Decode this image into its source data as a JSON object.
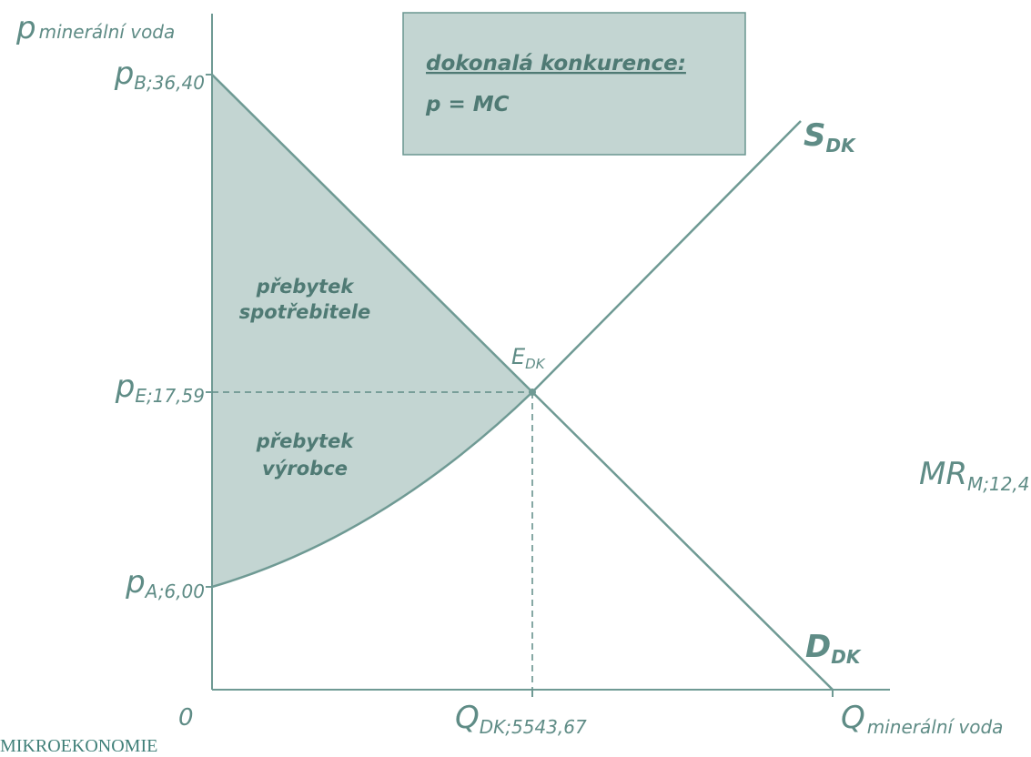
{
  "y_axis": {
    "main": "p",
    "sub": "minerální voda"
  },
  "x_axis": {
    "main": "Q",
    "sub": "minerální voda"
  },
  "origin": "0",
  "prices": [
    {
      "main": "p",
      "sub": "B;36,40"
    },
    {
      "main": "p",
      "sub": "E;17,59"
    },
    {
      "main": "p",
      "sub": "A;6,00"
    }
  ],
  "quantity": {
    "main": "Q",
    "sub": "DK;5543,67"
  },
  "supply": {
    "main": "S",
    "sub": "DK"
  },
  "demand": {
    "main": "D",
    "sub": "DK"
  },
  "equilibrium": {
    "main": "E",
    "sub": "DK"
  },
  "mr": {
    "main": "MR",
    "sub": "M;12,4"
  },
  "consumer_surplus": [
    "přebytek",
    "spotřebitele"
  ],
  "producer_surplus": [
    "přebytek",
    "výrobce"
  ],
  "box": {
    "title": "dokonalá konkurence:",
    "formula": "p = MC"
  },
  "footer": "MIKROEKONOMIE"
}
